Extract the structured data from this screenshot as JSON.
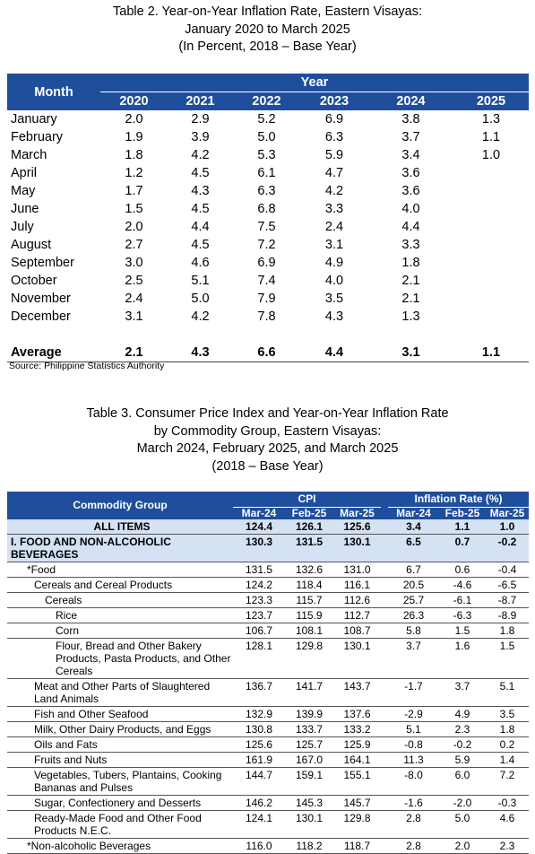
{
  "table2": {
    "title": [
      "Table 2. Year-on-Year Inflation Rate, Eastern Visayas:",
      "January 2020 to March 2025",
      "(In Percent, 2018 – Base Year)"
    ],
    "header": {
      "month": "Month",
      "year": "Year",
      "years": [
        2020,
        2021,
        2022,
        2023,
        2024,
        2025
      ]
    },
    "rows": [
      {
        "month": "January",
        "values": [
          "2.0",
          "2.9",
          "5.2",
          "6.9",
          "3.8",
          "1.3"
        ]
      },
      {
        "month": "February",
        "values": [
          "1.9",
          "3.9",
          "5.0",
          "6.3",
          "3.7",
          "1.1"
        ]
      },
      {
        "month": "March",
        "values": [
          "1.8",
          "4.2",
          "5.3",
          "5.9",
          "3.4",
          "1.0"
        ]
      },
      {
        "month": "April",
        "values": [
          "1.2",
          "4.5",
          "6.1",
          "4.7",
          "3.6"
        ]
      },
      {
        "month": "May",
        "values": [
          "1.7",
          "4.3",
          "6.3",
          "4.2",
          "3.6"
        ]
      },
      {
        "month": "June",
        "values": [
          "1.5",
          "4.5",
          "6.8",
          "3.3",
          "4.0"
        ]
      },
      {
        "month": "July",
        "values": [
          "2.0",
          "4.4",
          "7.5",
          "2.4",
          "4.4"
        ]
      },
      {
        "month": "August",
        "values": [
          "2.7",
          "4.5",
          "7.2",
          "3.1",
          "3.3"
        ]
      },
      {
        "month": "September",
        "values": [
          "3.0",
          "4.6",
          "6.9",
          "4.9",
          "1.8"
        ]
      },
      {
        "month": "October",
        "values": [
          "2.5",
          "5.1",
          "7.4",
          "4.0",
          "2.1"
        ]
      },
      {
        "month": "November",
        "values": [
          "2.4",
          "5.0",
          "7.9",
          "3.5",
          "2.1"
        ]
      },
      {
        "month": "December",
        "values": [
          "3.1",
          "4.2",
          "7.8",
          "4.3",
          "1.3"
        ]
      }
    ],
    "average": {
      "label": "Average",
      "values": [
        "2.1",
        "4.3",
        "6.6",
        "4.4",
        "3.1",
        "1.1"
      ]
    },
    "source": "Source: Philippine Statistics Authority"
  },
  "table3": {
    "title": [
      "Table 3. Consumer Price Index and Year-on-Year Inflation Rate",
      "by Commodity Group, Eastern Visayas:",
      "March 2024, February 2025, and March 2025",
      "(2018 – Base Year)"
    ],
    "header": {
      "group": "Commodity Group",
      "cpi": "CPI",
      "inflation": "Inflation Rate (%)",
      "cpi_periods": [
        "Mar-24",
        "Feb-25",
        "Mar-25"
      ],
      "inflation_periods": [
        "Mar-24",
        "Feb-25",
        "Mar-25"
      ]
    },
    "rows": [
      {
        "label": "ALL ITEMS",
        "level": 0,
        "align": "center",
        "cpi": [
          "124.4",
          "126.1",
          "125.6"
        ],
        "inflation": [
          "3.4",
          "1.1",
          "1.0"
        ]
      },
      {
        "label": "I. FOOD AND NON-ALCOHOLIC BEVERAGES",
        "level": 0,
        "cpi": [
          "130.3",
          "131.5",
          "130.1"
        ],
        "inflation": [
          "6.5",
          "0.7",
          "-0.2"
        ]
      },
      {
        "label": "*Food",
        "level": 1,
        "cpi": [
          "131.5",
          "132.6",
          "131.0"
        ],
        "inflation": [
          "6.7",
          "0.6",
          "-0.4"
        ]
      },
      {
        "label": "Cereals and Cereal Products",
        "level": 2,
        "cpi": [
          "124.2",
          "118.4",
          "116.1"
        ],
        "inflation": [
          "20.5",
          "-4.6",
          "-6.5"
        ]
      },
      {
        "label": "Cereals",
        "level": 3,
        "cpi": [
          "123.3",
          "115.7",
          "112.6"
        ],
        "inflation": [
          "25.7",
          "-6.1",
          "-8.7"
        ]
      },
      {
        "label": "Rice",
        "level": 4,
        "cpi": [
          "123.7",
          "115.9",
          "112.7"
        ],
        "inflation": [
          "26.3",
          "-6.3",
          "-8.9"
        ]
      },
      {
        "label": "Corn",
        "level": 4,
        "cpi": [
          "106.7",
          "108.1",
          "108.7"
        ],
        "inflation": [
          "5.8",
          "1.5",
          "1.8"
        ]
      },
      {
        "label": "Flour, Bread and Other Bakery Products, Pasta Products, and Other Cereals",
        "level": 4,
        "cpi": [
          "128.1",
          "129.8",
          "130.1"
        ],
        "inflation": [
          "3.7",
          "1.6",
          "1.5"
        ]
      },
      {
        "label": "Meat and Other Parts of Slaughtered Land Animals",
        "level": 2,
        "cpi": [
          "136.7",
          "141.7",
          "143.7"
        ],
        "inflation": [
          "-1.7",
          "3.7",
          "5.1"
        ]
      },
      {
        "label": "Fish and Other Seafood",
        "level": 2,
        "cpi": [
          "132.9",
          "139.9",
          "137.6"
        ],
        "inflation": [
          "-2.9",
          "4.9",
          "3.5"
        ]
      },
      {
        "label": "Milk, Other Dairy Products, and Eggs",
        "level": 2,
        "cpi": [
          "130.8",
          "133.7",
          "133.2"
        ],
        "inflation": [
          "5.1",
          "2.3",
          "1.8"
        ]
      },
      {
        "label": "Oils and Fats",
        "level": 2,
        "cpi": [
          "125.6",
          "125.7",
          "125.9"
        ],
        "inflation": [
          "-0.8",
          "-0.2",
          "0.2"
        ]
      },
      {
        "label": "Fruits and Nuts",
        "level": 2,
        "cpi": [
          "161.9",
          "167.0",
          "164.1"
        ],
        "inflation": [
          "11.3",
          "5.9",
          "1.4"
        ]
      },
      {
        "label": "Vegetables, Tubers, Plantains, Cooking Bananas and Pulses",
        "level": 2,
        "cpi": [
          "144.7",
          "159.1",
          "155.1"
        ],
        "inflation": [
          "-8.0",
          "6.0",
          "7.2"
        ]
      },
      {
        "label": "Sugar, Confectionery and Desserts",
        "level": 2,
        "cpi": [
          "146.2",
          "145.3",
          "145.7"
        ],
        "inflation": [
          "-1.6",
          "-2.0",
          "-0.3"
        ]
      },
      {
        "label": "Ready-Made Food and Other Food Products N.E.C.",
        "level": 2,
        "cpi": [
          "124.1",
          "130.1",
          "129.8"
        ],
        "inflation": [
          "2.8",
          "5.0",
          "4.6"
        ]
      },
      {
        "label": "*Non-alcoholic Beverages",
        "level": 1,
        "cpi": [
          "116.0",
          "118.2",
          "118.7"
        ],
        "inflation": [
          "2.8",
          "2.0",
          "2.3"
        ]
      }
    ]
  }
}
